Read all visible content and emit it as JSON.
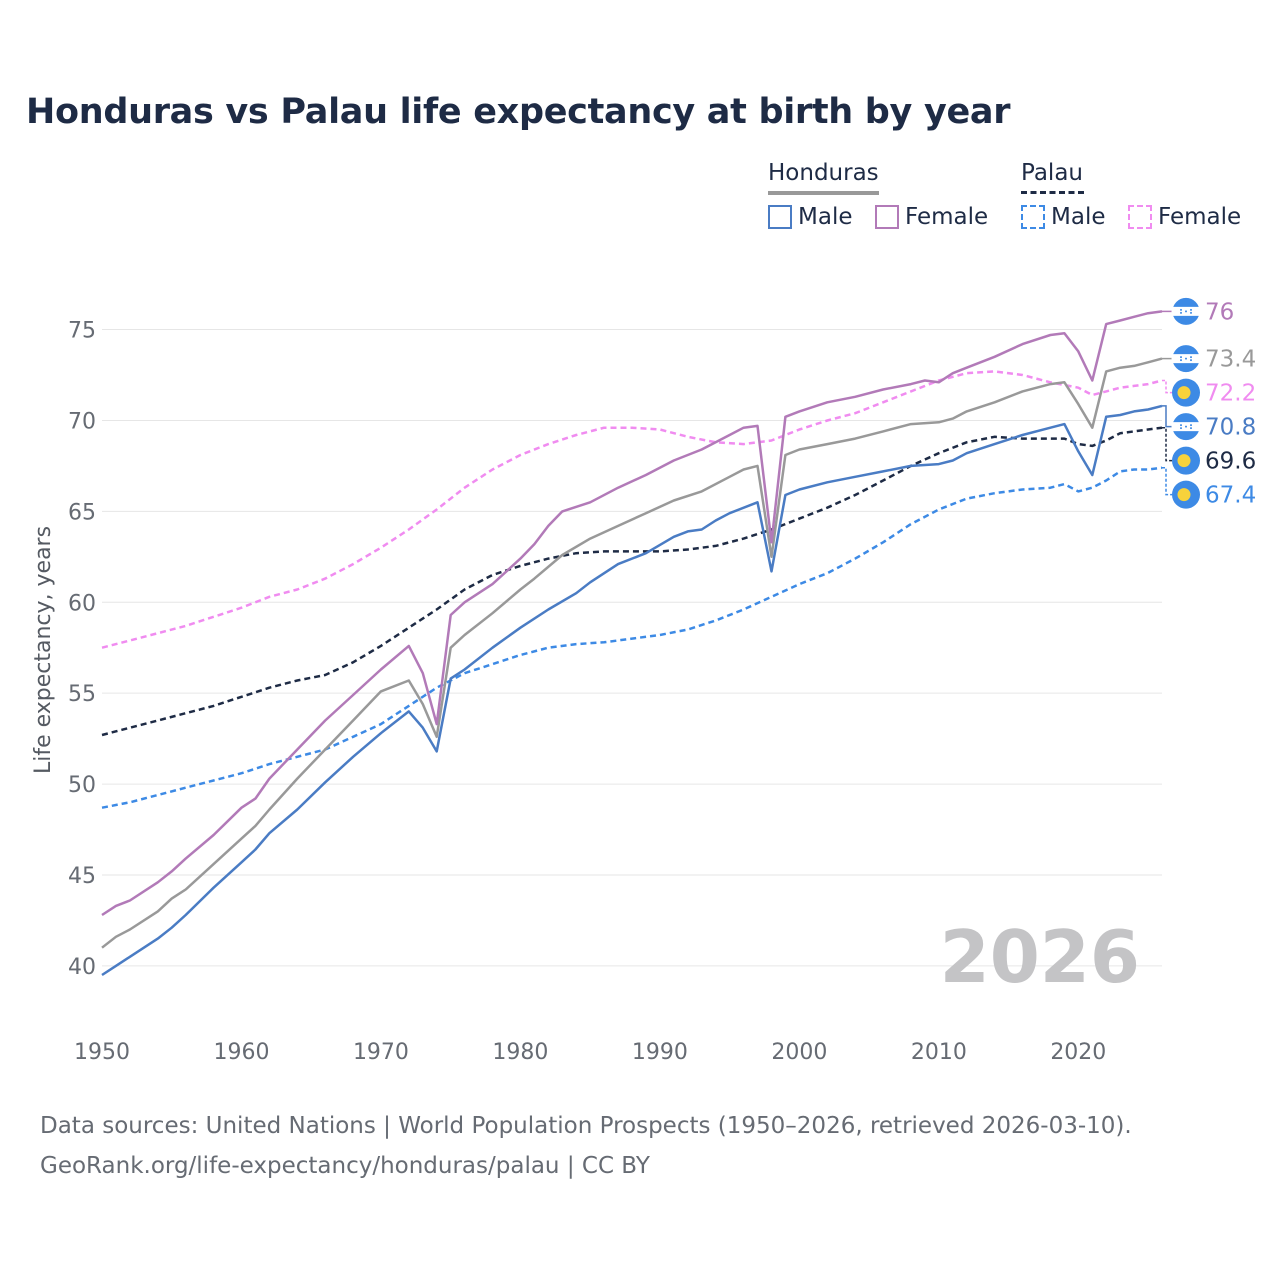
{
  "title": "Honduras vs Palau life expectancy at birth by year",
  "legend": {
    "honduras": {
      "title": "Honduras",
      "male": "Male",
      "female": "Female"
    },
    "palau": {
      "title": "Palau",
      "male": "Male",
      "female": "Female"
    }
  },
  "footer": {
    "line1": "Data sources: United Nations | World Population Prospects (1950–2026, retrieved 2026-03-10).",
    "line2": "GeoRank.org/life-expectancy/honduras/palau | CC BY"
  },
  "colors": {
    "honduras_total": "#999999",
    "honduras_male": "#4a7cc4",
    "honduras_female": "#b27ab8",
    "palau_total": "#1e2b45",
    "palau_male": "#3d8ae5",
    "palau_female": "#f08cf0",
    "flag_blue": "#3d8ae5",
    "palau_dot": "#f7d23b"
  },
  "chart_data": {
    "type": "line",
    "title": "Honduras vs Palau life expectancy at birth by year",
    "xlabel": "",
    "ylabel": "Life expectancy, years",
    "xlim": [
      1950,
      2026
    ],
    "ylim": [
      37.3,
      78
    ],
    "x_ticks": [
      1950,
      1960,
      1970,
      1980,
      1990,
      2000,
      2010,
      2020
    ],
    "y_ticks": [
      40,
      45,
      50,
      55,
      60,
      65,
      70,
      75
    ],
    "grid": true,
    "current_year": "2026",
    "series": [
      {
        "key": "honduras_total",
        "name": "Honduras",
        "dashed": false,
        "end_label": "73.4",
        "points": [
          [
            1950,
            41.0
          ],
          [
            1951,
            41.6
          ],
          [
            1952,
            42.0
          ],
          [
            1954,
            43.0
          ],
          [
            1955,
            43.7
          ],
          [
            1956,
            44.2
          ],
          [
            1958,
            45.6
          ],
          [
            1960,
            47.0
          ],
          [
            1961,
            47.7
          ],
          [
            1962,
            48.6
          ],
          [
            1964,
            50.3
          ],
          [
            1966,
            51.9
          ],
          [
            1968,
            53.5
          ],
          [
            1970,
            55.1
          ],
          [
            1972,
            55.7
          ],
          [
            1973,
            54.4
          ],
          [
            1974,
            52.6
          ],
          [
            1975,
            57.5
          ],
          [
            1976,
            58.2
          ],
          [
            1978,
            59.4
          ],
          [
            1980,
            60.7
          ],
          [
            1981,
            61.3
          ],
          [
            1983,
            62.6
          ],
          [
            1985,
            63.5
          ],
          [
            1987,
            64.2
          ],
          [
            1989,
            64.9
          ],
          [
            1991,
            65.6
          ],
          [
            1993,
            66.1
          ],
          [
            1995,
            66.9
          ],
          [
            1996,
            67.3
          ],
          [
            1997,
            67.5
          ],
          [
            1998,
            62.5
          ],
          [
            1999,
            68.1
          ],
          [
            2000,
            68.4
          ],
          [
            2002,
            68.7
          ],
          [
            2004,
            69.0
          ],
          [
            2006,
            69.4
          ],
          [
            2008,
            69.8
          ],
          [
            2010,
            69.9
          ],
          [
            2011,
            70.1
          ],
          [
            2012,
            70.5
          ],
          [
            2014,
            71.0
          ],
          [
            2016,
            71.6
          ],
          [
            2018,
            72.0
          ],
          [
            2019,
            72.1
          ],
          [
            2020,
            70.9
          ],
          [
            2021,
            69.6
          ],
          [
            2022,
            72.7
          ],
          [
            2023,
            72.9
          ],
          [
            2024,
            73.0
          ],
          [
            2025,
            73.2
          ],
          [
            2026,
            73.4
          ]
        ]
      },
      {
        "key": "honduras_male",
        "name": "Honduras Male",
        "dashed": false,
        "end_label": "70.8",
        "points": [
          [
            1950,
            39.5
          ],
          [
            1951,
            40.0
          ],
          [
            1952,
            40.5
          ],
          [
            1954,
            41.5
          ],
          [
            1955,
            42.1
          ],
          [
            1956,
            42.8
          ],
          [
            1958,
            44.3
          ],
          [
            1960,
            45.7
          ],
          [
            1961,
            46.4
          ],
          [
            1962,
            47.3
          ],
          [
            1964,
            48.6
          ],
          [
            1966,
            50.1
          ],
          [
            1968,
            51.5
          ],
          [
            1970,
            52.8
          ],
          [
            1972,
            54.0
          ],
          [
            1973,
            53.1
          ],
          [
            1974,
            51.8
          ],
          [
            1975,
            55.8
          ],
          [
            1976,
            56.3
          ],
          [
            1978,
            57.5
          ],
          [
            1980,
            58.6
          ],
          [
            1982,
            59.6
          ],
          [
            1984,
            60.5
          ],
          [
            1985,
            61.1
          ],
          [
            1987,
            62.1
          ],
          [
            1989,
            62.7
          ],
          [
            1991,
            63.6
          ],
          [
            1992,
            63.9
          ],
          [
            1993,
            64.0
          ],
          [
            1994,
            64.5
          ],
          [
            1995,
            64.9
          ],
          [
            1997,
            65.5
          ],
          [
            1998,
            61.7
          ],
          [
            1999,
            65.9
          ],
          [
            2000,
            66.2
          ],
          [
            2002,
            66.6
          ],
          [
            2004,
            66.9
          ],
          [
            2006,
            67.2
          ],
          [
            2008,
            67.5
          ],
          [
            2010,
            67.6
          ],
          [
            2011,
            67.8
          ],
          [
            2012,
            68.2
          ],
          [
            2014,
            68.7
          ],
          [
            2016,
            69.2
          ],
          [
            2018,
            69.6
          ],
          [
            2019,
            69.8
          ],
          [
            2020,
            68.3
          ],
          [
            2021,
            67.0
          ],
          [
            2022,
            70.2
          ],
          [
            2023,
            70.3
          ],
          [
            2024,
            70.5
          ],
          [
            2025,
            70.6
          ],
          [
            2026,
            70.8
          ]
        ]
      },
      {
        "key": "honduras_female",
        "name": "Honduras Female",
        "dashed": false,
        "end_label": "76",
        "points": [
          [
            1950,
            42.8
          ],
          [
            1951,
            43.3
          ],
          [
            1952,
            43.6
          ],
          [
            1954,
            44.6
          ],
          [
            1955,
            45.2
          ],
          [
            1956,
            45.9
          ],
          [
            1958,
            47.2
          ],
          [
            1960,
            48.7
          ],
          [
            1961,
            49.2
          ],
          [
            1962,
            50.3
          ],
          [
            1964,
            51.9
          ],
          [
            1966,
            53.5
          ],
          [
            1968,
            54.9
          ],
          [
            1970,
            56.3
          ],
          [
            1972,
            57.6
          ],
          [
            1973,
            56.1
          ],
          [
            1974,
            53.3
          ],
          [
            1975,
            59.3
          ],
          [
            1976,
            60.0
          ],
          [
            1978,
            61.0
          ],
          [
            1980,
            62.4
          ],
          [
            1981,
            63.2
          ],
          [
            1982,
            64.2
          ],
          [
            1983,
            65.0
          ],
          [
            1985,
            65.5
          ],
          [
            1987,
            66.3
          ],
          [
            1989,
            67.0
          ],
          [
            1991,
            67.8
          ],
          [
            1993,
            68.4
          ],
          [
            1995,
            69.2
          ],
          [
            1996,
            69.6
          ],
          [
            1997,
            69.7
          ],
          [
            1998,
            63.3
          ],
          [
            1999,
            70.2
          ],
          [
            2000,
            70.5
          ],
          [
            2002,
            71.0
          ],
          [
            2004,
            71.3
          ],
          [
            2006,
            71.7
          ],
          [
            2008,
            72.0
          ],
          [
            2009,
            72.2
          ],
          [
            2010,
            72.1
          ],
          [
            2011,
            72.6
          ],
          [
            2012,
            72.9
          ],
          [
            2014,
            73.5
          ],
          [
            2016,
            74.2
          ],
          [
            2018,
            74.7
          ],
          [
            2019,
            74.8
          ],
          [
            2020,
            73.8
          ],
          [
            2021,
            72.2
          ],
          [
            2022,
            75.3
          ],
          [
            2023,
            75.5
          ],
          [
            2024,
            75.7
          ],
          [
            2025,
            75.9
          ],
          [
            2026,
            76.0
          ]
        ]
      },
      {
        "key": "palau_total",
        "name": "Palau",
        "dashed": true,
        "end_label": "69.6",
        "points": [
          [
            1950,
            52.7
          ],
          [
            1952,
            53.1
          ],
          [
            1954,
            53.5
          ],
          [
            1956,
            53.9
          ],
          [
            1958,
            54.3
          ],
          [
            1960,
            54.8
          ],
          [
            1962,
            55.3
          ],
          [
            1964,
            55.7
          ],
          [
            1966,
            56.0
          ],
          [
            1968,
            56.7
          ],
          [
            1970,
            57.6
          ],
          [
            1972,
            58.6
          ],
          [
            1974,
            59.6
          ],
          [
            1976,
            60.7
          ],
          [
            1978,
            61.5
          ],
          [
            1980,
            62.0
          ],
          [
            1982,
            62.4
          ],
          [
            1984,
            62.7
          ],
          [
            1986,
            62.8
          ],
          [
            1988,
            62.8
          ],
          [
            1990,
            62.8
          ],
          [
            1992,
            62.9
          ],
          [
            1994,
            63.1
          ],
          [
            1996,
            63.5
          ],
          [
            1998,
            64.0
          ],
          [
            2000,
            64.6
          ],
          [
            2002,
            65.2
          ],
          [
            2004,
            65.9
          ],
          [
            2006,
            66.7
          ],
          [
            2008,
            67.5
          ],
          [
            2010,
            68.2
          ],
          [
            2012,
            68.8
          ],
          [
            2014,
            69.1
          ],
          [
            2016,
            69.0
          ],
          [
            2018,
            69.0
          ],
          [
            2019,
            69.0
          ],
          [
            2020,
            68.7
          ],
          [
            2021,
            68.6
          ],
          [
            2022,
            68.9
          ],
          [
            2023,
            69.3
          ],
          [
            2024,
            69.4
          ],
          [
            2025,
            69.5
          ],
          [
            2026,
            69.6
          ]
        ]
      },
      {
        "key": "palau_male",
        "name": "Palau Male",
        "dashed": true,
        "end_label": "67.4",
        "points": [
          [
            1950,
            48.7
          ],
          [
            1952,
            49.0
          ],
          [
            1954,
            49.4
          ],
          [
            1956,
            49.8
          ],
          [
            1958,
            50.2
          ],
          [
            1960,
            50.6
          ],
          [
            1962,
            51.1
          ],
          [
            1964,
            51.5
          ],
          [
            1966,
            51.9
          ],
          [
            1968,
            52.6
          ],
          [
            1970,
            53.3
          ],
          [
            1972,
            54.3
          ],
          [
            1974,
            55.3
          ],
          [
            1976,
            56.1
          ],
          [
            1978,
            56.6
          ],
          [
            1980,
            57.1
          ],
          [
            1982,
            57.5
          ],
          [
            1984,
            57.7
          ],
          [
            1986,
            57.8
          ],
          [
            1988,
            58.0
          ],
          [
            1990,
            58.2
          ],
          [
            1992,
            58.5
          ],
          [
            1994,
            59.0
          ],
          [
            1996,
            59.6
          ],
          [
            1998,
            60.3
          ],
          [
            2000,
            61.0
          ],
          [
            2002,
            61.6
          ],
          [
            2004,
            62.4
          ],
          [
            2006,
            63.3
          ],
          [
            2008,
            64.3
          ],
          [
            2010,
            65.1
          ],
          [
            2012,
            65.7
          ],
          [
            2014,
            66.0
          ],
          [
            2016,
            66.2
          ],
          [
            2018,
            66.3
          ],
          [
            2019,
            66.5
          ],
          [
            2020,
            66.1
          ],
          [
            2021,
            66.3
          ],
          [
            2022,
            66.7
          ],
          [
            2023,
            67.2
          ],
          [
            2024,
            67.3
          ],
          [
            2025,
            67.3
          ],
          [
            2026,
            67.4
          ]
        ]
      },
      {
        "key": "palau_female",
        "name": "Palau Female",
        "dashed": true,
        "end_label": "72.2",
        "points": [
          [
            1950,
            57.5
          ],
          [
            1952,
            57.9
          ],
          [
            1954,
            58.3
          ],
          [
            1956,
            58.7
          ],
          [
            1958,
            59.2
          ],
          [
            1960,
            59.7
          ],
          [
            1962,
            60.3
          ],
          [
            1964,
            60.7
          ],
          [
            1966,
            61.3
          ],
          [
            1968,
            62.1
          ],
          [
            1970,
            63.0
          ],
          [
            1972,
            64.0
          ],
          [
            1974,
            65.1
          ],
          [
            1976,
            66.3
          ],
          [
            1978,
            67.3
          ],
          [
            1980,
            68.1
          ],
          [
            1982,
            68.7
          ],
          [
            1984,
            69.2
          ],
          [
            1986,
            69.6
          ],
          [
            1988,
            69.6
          ],
          [
            1990,
            69.5
          ],
          [
            1992,
            69.1
          ],
          [
            1994,
            68.8
          ],
          [
            1996,
            68.7
          ],
          [
            1998,
            68.9
          ],
          [
            2000,
            69.5
          ],
          [
            2002,
            70.0
          ],
          [
            2004,
            70.4
          ],
          [
            2006,
            71.0
          ],
          [
            2008,
            71.6
          ],
          [
            2010,
            72.2
          ],
          [
            2012,
            72.6
          ],
          [
            2014,
            72.7
          ],
          [
            2016,
            72.5
          ],
          [
            2018,
            72.1
          ],
          [
            2020,
            71.8
          ],
          [
            2021,
            71.4
          ],
          [
            2022,
            71.6
          ],
          [
            2023,
            71.8
          ],
          [
            2024,
            71.9
          ],
          [
            2025,
            72.0
          ],
          [
            2026,
            72.2
          ]
        ]
      }
    ]
  }
}
